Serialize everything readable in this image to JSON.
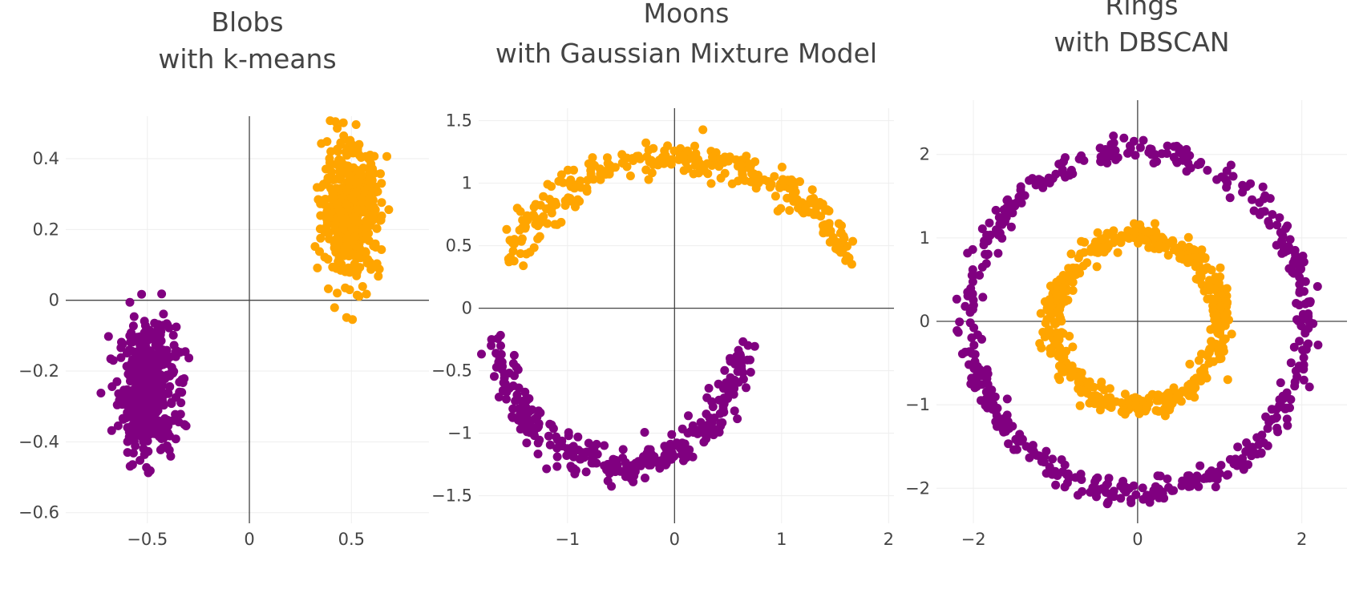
{
  "colors": {
    "cluster_a": "#800080",
    "cluster_b": "#FFA500"
  },
  "chart_data": [
    {
      "type": "scatter",
      "title_lines": [
        "Blobs",
        "with k-means"
      ],
      "xlabel": "",
      "ylabel": "",
      "xlim": [
        -0.9,
        0.88
      ],
      "ylim": [
        -0.63,
        0.52
      ],
      "xticks": [
        -0.5,
        0,
        0.5
      ],
      "xtick_labels": [
        "−0.5",
        "0",
        "0.5"
      ],
      "yticks": [
        -0.6,
        -0.4,
        -0.2,
        0,
        0.2,
        0.4
      ],
      "ytick_labels": [
        "−0.6",
        "−0.4",
        "−0.2",
        "0",
        "0.2",
        "0.4"
      ],
      "grid": true,
      "series": [
        {
          "color_key": "cluster_a",
          "shape": "blob",
          "count": 500,
          "center": [
            -0.5,
            -0.25
          ],
          "spread": [
            0.07,
            0.09
          ]
        },
        {
          "color_key": "cluster_b",
          "shape": "blob",
          "count": 500,
          "center": [
            0.5,
            0.25
          ],
          "spread": [
            0.07,
            0.09
          ]
        }
      ]
    },
    {
      "type": "scatter",
      "title_lines": [
        "Moons",
        "with Gaussian Mixture Model"
      ],
      "xlabel": "",
      "ylabel": "",
      "xlim": [
        -1.83,
        2.05
      ],
      "ylim": [
        -1.72,
        1.6
      ],
      "xticks": [
        -1,
        0,
        1,
        2
      ],
      "xtick_labels": [
        "−1",
        "0",
        "1",
        "2"
      ],
      "yticks": [
        -1.5,
        -1,
        -0.5,
        0,
        0.5,
        1,
        1.5
      ],
      "ytick_labels": [
        "−1.5",
        "−1",
        "−0.5",
        "0",
        "0.5",
        "1",
        "1.5"
      ],
      "grid": true,
      "series": [
        {
          "color_key": "cluster_b",
          "shape": "upper_moon",
          "count": 300,
          "center": [
            0.05,
            0.0
          ],
          "radius": 1.25,
          "noise": 0.07
        },
        {
          "color_key": "cluster_a",
          "shape": "lower_moon",
          "count": 300,
          "center": [
            -0.5,
            0.0
          ],
          "radius": 1.2,
          "noise": 0.07
        }
      ]
    },
    {
      "type": "scatter",
      "title_lines": [
        "Rings",
        "with DBSCAN"
      ],
      "xlabel": "",
      "ylabel": "",
      "xlim": [
        -2.45,
        2.55
      ],
      "ylim": [
        -2.42,
        2.65
      ],
      "xticks": [
        -2,
        0,
        2
      ],
      "xtick_labels": [
        "−2",
        "0",
        "2"
      ],
      "yticks": [
        -2,
        -1,
        0,
        1,
        2
      ],
      "ytick_labels": [
        "−2",
        "−1",
        "0",
        "1",
        "2"
      ],
      "grid": true,
      "series": [
        {
          "color_key": "cluster_a",
          "shape": "ring",
          "count": 500,
          "center": [
            0,
            0
          ],
          "radius": 2.05,
          "noise": 0.07
        },
        {
          "color_key": "cluster_b",
          "shape": "ring",
          "count": 500,
          "center": [
            0,
            0
          ],
          "radius": 1.02,
          "noise": 0.07
        }
      ]
    }
  ]
}
